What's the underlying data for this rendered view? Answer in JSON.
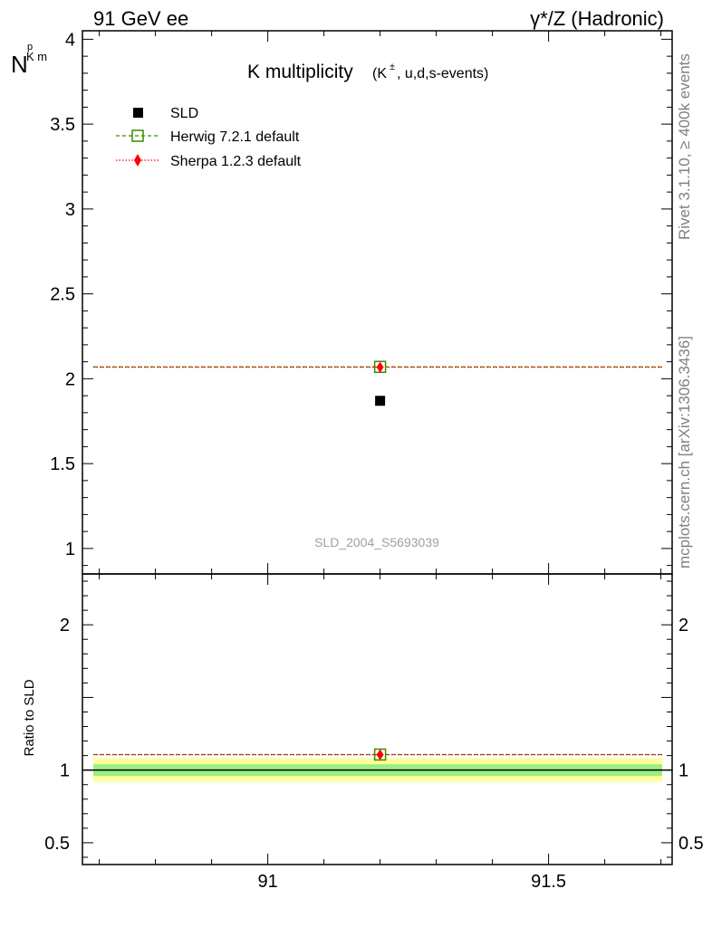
{
  "header": {
    "left": "91 GeV ee",
    "right": "γ*/Z (Hadronic)"
  },
  "main_panel": {
    "ylabel_main": "N",
    "ylabel_sup": "p",
    "ylabel_sub": "K m",
    "title_main": "K multiplicity",
    "title_sub_prefix": "(K",
    "title_sub_sup": "±",
    "title_sub_suffix": ", u,d,s-events)",
    "watermark": "SLD_2004_S5693039"
  },
  "legend": {
    "entries": [
      {
        "label": "SLD",
        "color": "#000000",
        "marker": "filled-square"
      },
      {
        "label": "Herwig 7.2.1 default",
        "color": "#3a8a00",
        "marker": "open-square",
        "line": "dashed"
      },
      {
        "label": "Sherpa 1.2.3 default",
        "color": "#ff0000",
        "marker": "diamond",
        "line": "dotted"
      }
    ]
  },
  "ratio_panel": {
    "ylabel": "Ratio to SLD"
  },
  "side_text": {
    "top": "Rivet 3.1.10, ≥ 400k events",
    "bottom": "mcplots.cern.ch [arXiv:1306.3436]"
  },
  "chart_data": {
    "type": "scatter",
    "x_range": [
      90.67,
      91.72
    ],
    "x_ticks": [
      {
        "value": 91,
        "label": "91"
      },
      {
        "value": 91.5,
        "label": "91.5"
      }
    ],
    "main": {
      "ylim": [
        0.85,
        4.05
      ],
      "y_ticks": [
        {
          "value": 1,
          "label": "1"
        },
        {
          "value": 1.5,
          "label": "1.5"
        },
        {
          "value": 2,
          "label": "2"
        },
        {
          "value": 2.5,
          "label": "2.5"
        },
        {
          "value": 3,
          "label": "3"
        },
        {
          "value": 3.5,
          "label": "3.5"
        },
        {
          "value": 4,
          "label": "4"
        }
      ]
    },
    "ratio": {
      "ylim": [
        0.35,
        2.35
      ],
      "y_ticks": [
        {
          "value": 0.5,
          "label": "0.5"
        },
        {
          "value": 1,
          "label": "1"
        },
        {
          "value": 2,
          "label": "2"
        }
      ],
      "band_inner": [
        0.96,
        1.04
      ],
      "band_outer": [
        0.92,
        1.08
      ]
    },
    "series": [
      {
        "name": "SLD",
        "x": 91.2,
        "y": 1.87,
        "ratio": 1.0,
        "color": "#000000"
      },
      {
        "name": "Herwig 7.2.1 default",
        "x": 91.2,
        "y": 2.07,
        "ratio": 1.107,
        "color": "#3a8a00"
      },
      {
        "name": "Sherpa 1.2.3 default",
        "x": 91.2,
        "y": 2.068,
        "ratio": 1.106,
        "color": "#ff0000"
      }
    ]
  }
}
